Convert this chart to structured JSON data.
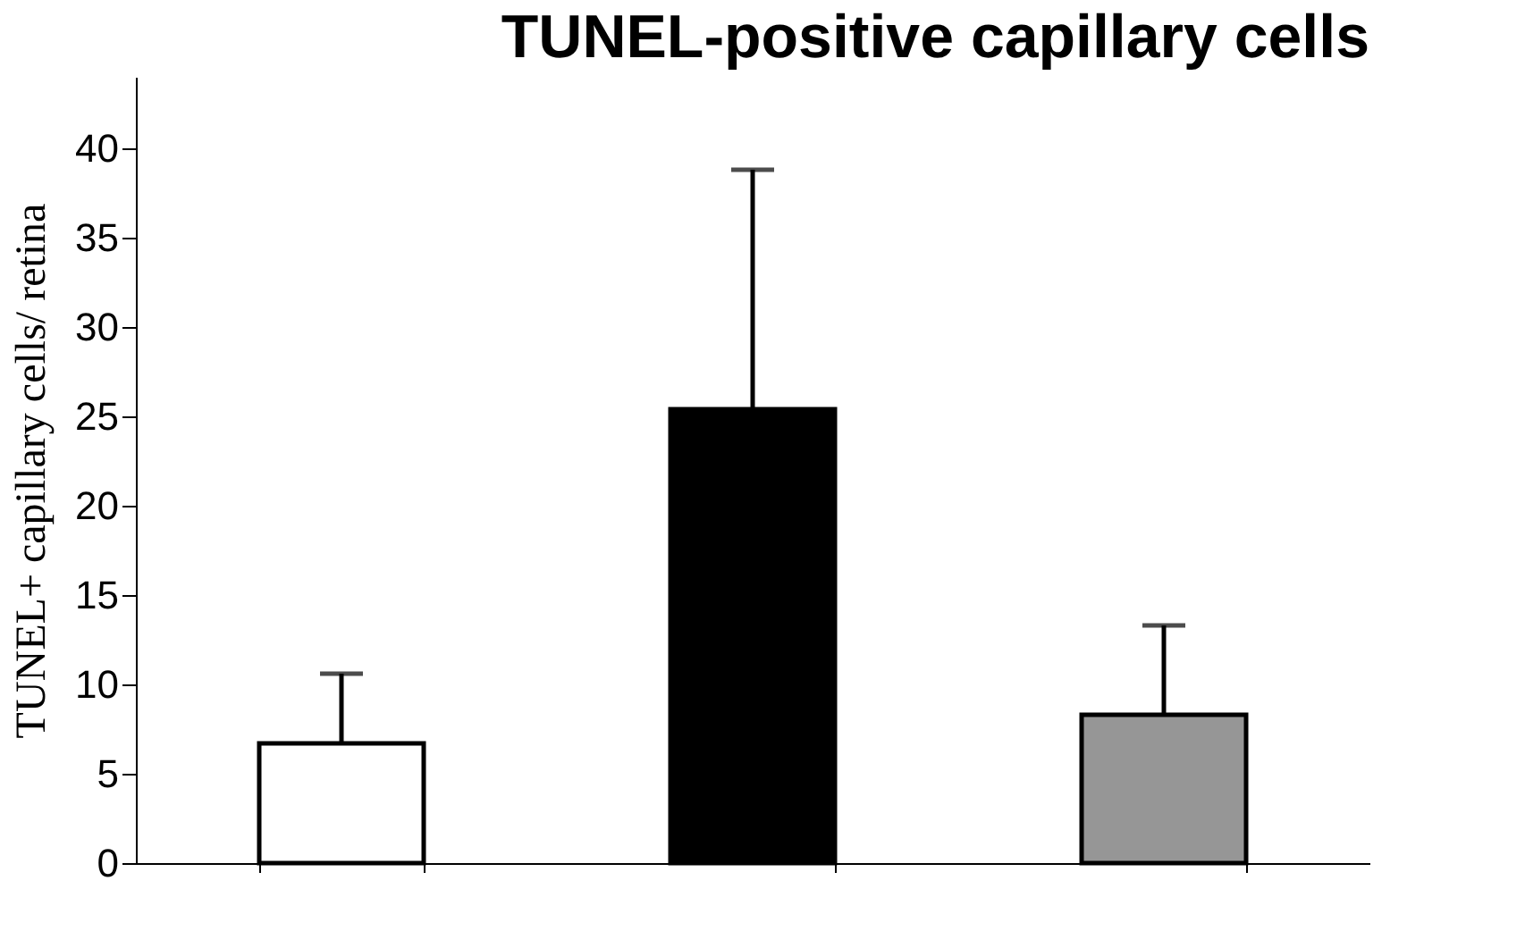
{
  "chart_data": {
    "type": "bar",
    "title": "TUNEL-positive capillary cells",
    "ylabel": "TUNEL+ capillary cells/ retina",
    "categories": [
      null,
      null,
      null
    ],
    "values": [
      6.7,
      25.4,
      8.3
    ],
    "colors": [
      "#ffffff",
      "#000000",
      "#969696"
    ],
    "errors": [
      [
        6.7,
        10.6
      ],
      [
        25.4,
        38.8
      ],
      [
        8.3,
        13.3
      ]
    ],
    "ylim": [
      0,
      44
    ],
    "yticks": [
      0,
      5,
      10,
      15,
      20,
      25,
      30,
      35,
      40
    ],
    "grid": false,
    "tick_labels": "y"
  }
}
